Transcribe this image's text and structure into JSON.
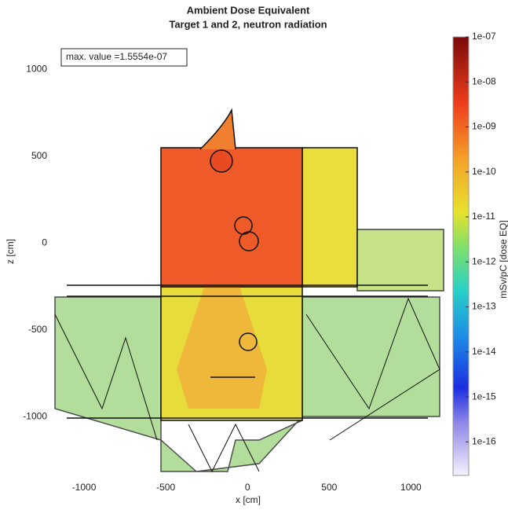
{
  "chart_data": {
    "type": "heatmap",
    "title": "Ambient Dose Equivalent",
    "subtitle": "Target 1 and 2, neutron radiation",
    "annotation": "max. value =1.5554e-07",
    "x_label": "x [cm]",
    "y_label": "z [cm]",
    "colorbar_label": "mSv/pC [dose EQ]",
    "xlim": [
      -1250,
      1200
    ],
    "xticks": [
      -1000,
      -500,
      0,
      500,
      1000
    ],
    "ylim": [
      -1360,
      1150
    ],
    "yticks": [
      -1000,
      -500,
      0,
      500,
      1000
    ],
    "color_scale": "log",
    "clim": [
      1.8e-17,
      1e-07
    ],
    "cticks": [
      {
        "value": 1e-07,
        "label": "1e-07"
      },
      {
        "value": 1e-08,
        "label": "1e-08"
      },
      {
        "value": 1e-09,
        "label": "1e-09"
      },
      {
        "value": 1e-10,
        "label": "1e-10"
      },
      {
        "value": 1e-11,
        "label": "1e-11"
      },
      {
        "value": 1e-12,
        "label": "1e-12"
      },
      {
        "value": 1e-13,
        "label": "1e-13"
      },
      {
        "value": 1e-14,
        "label": "1e-14"
      },
      {
        "value": 1e-15,
        "label": "1e-15"
      },
      {
        "value": 1e-16,
        "label": "1e-16"
      }
    ]
  }
}
